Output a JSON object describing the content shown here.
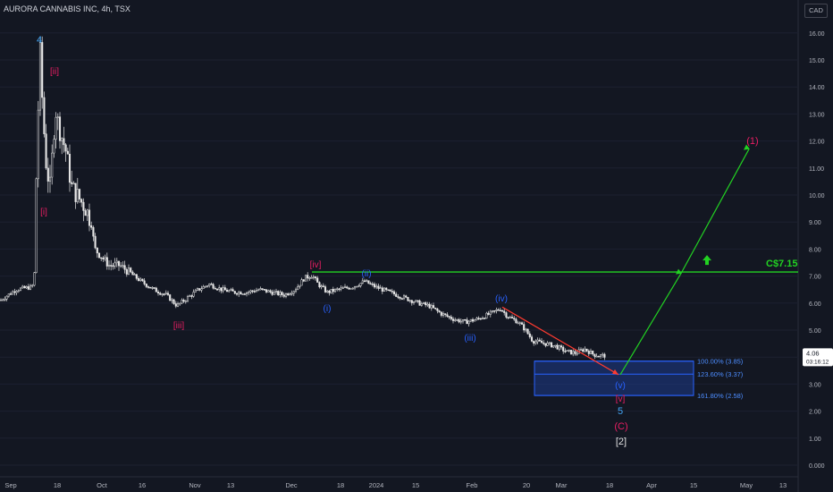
{
  "header": {
    "title": "AURORA CANNABIS INC, 4h, TSX",
    "currency": "CAD"
  },
  "price_tag": {
    "price": "4.06",
    "countdown": "03:16:12"
  },
  "colors": {
    "background": "#131722",
    "candle": "#e6e6e6",
    "target_line": "#22d122",
    "red_line": "#ff3b30",
    "fib_box": "#1e3a8a",
    "wave_magenta": "#e91e63",
    "wave_blue": "#2962ff",
    "wave_cyan": "#42a5f5"
  },
  "chart_data": {
    "type": "candlestick",
    "title": "AURORA CANNABIS INC, 4h, TSX",
    "ylim": [
      0,
      17
    ],
    "y_ticks": [
      "16.00",
      "15.00",
      "14.00",
      "13.00",
      "12.00",
      "11.00",
      "10.00",
      "9.00",
      "8.00",
      "7.00",
      "6.00",
      "5.00",
      "4.00",
      "3.00",
      "2.00",
      "1.00",
      "0.000"
    ],
    "y_tick_values": [
      16,
      15,
      14,
      13,
      12,
      11,
      10,
      9,
      8,
      7,
      6,
      5,
      4,
      3,
      2,
      1,
      0
    ],
    "x_ticks": [
      "Sep",
      "18",
      "Oct",
      "16",
      "Nov",
      "13",
      "Dec",
      "18",
      "2024",
      "15",
      "Feb",
      "20",
      "Mar",
      "18",
      "Apr",
      "15",
      "May",
      "13"
    ],
    "series": [
      {
        "values": [
          {
            "x": "Sep",
            "close": 6.4
          },
          {
            "x": "Sep",
            "close": 6.8
          },
          {
            "x": "Sep",
            "close": 15.5
          },
          {
            "x": "18",
            "close": 12.0
          },
          {
            "x": "18",
            "close": 10.5
          },
          {
            "x": "Oct",
            "close": 8.0
          },
          {
            "x": "Oct",
            "close": 7.5
          },
          {
            "x": "16",
            "close": 6.3
          },
          {
            "x": "Nov",
            "close": 6.2
          },
          {
            "x": "13",
            "close": 6.6
          },
          {
            "x": "Dec",
            "close": 6.5
          },
          {
            "x": "Dec",
            "close": 7.1
          },
          {
            "x": "18",
            "close": 6.6
          },
          {
            "x": "2024",
            "close": 6.7
          },
          {
            "x": "15",
            "close": 6.1
          },
          {
            "x": "Feb",
            "close": 5.3
          },
          {
            "x": "Feb",
            "close": 5.8
          },
          {
            "x": "20",
            "close": 4.6
          },
          {
            "x": "Mar",
            "close": 4.2
          },
          {
            "x": "Mar",
            "close": 4.06
          }
        ]
      }
    ],
    "annotations": {
      "target": {
        "label": "C$7.15",
        "value": 7.15
      },
      "fib_levels": [
        {
          "label": "100.00% (3.85)",
          "value": 3.85
        },
        {
          "label": "123.60% (3.37)",
          "value": 3.37
        },
        {
          "label": "161.80% (2.58)",
          "value": 2.58
        }
      ],
      "wave_labels": [
        {
          "text": "4",
          "color": "cyan"
        },
        {
          "text": "[ii]",
          "color": "magenta"
        },
        {
          "text": "[i]",
          "color": "magenta"
        },
        {
          "text": "[iii]",
          "color": "magenta"
        },
        {
          "text": "[iv]",
          "color": "magenta"
        },
        {
          "text": "(ii)",
          "color": "blue"
        },
        {
          "text": "(i)",
          "color": "blue"
        },
        {
          "text": "(iii)",
          "color": "blue"
        },
        {
          "text": "(iv)",
          "color": "blue"
        },
        {
          "text": "(v)",
          "color": "blue"
        },
        {
          "text": "[v]",
          "color": "magenta"
        },
        {
          "text": "5",
          "color": "cyan"
        },
        {
          "text": "(C)",
          "color": "magenta"
        },
        {
          "text": "[2]",
          "color": "white"
        },
        {
          "text": "(1)",
          "color": "magenta"
        }
      ]
    }
  }
}
